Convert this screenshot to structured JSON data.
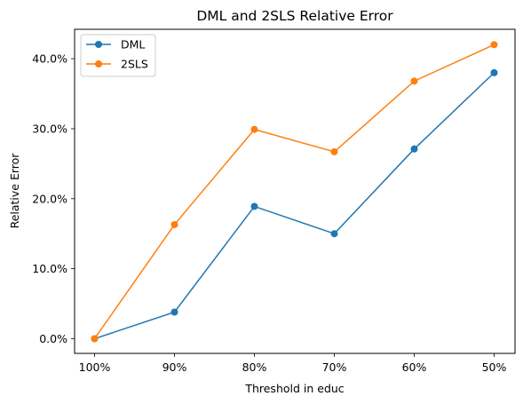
{
  "chart_data": {
    "type": "line",
    "title": "DML and 2SLS Relative Error",
    "xlabel": "Threshold in educ",
    "ylabel": "Relative Error",
    "categories": [
      "100%",
      "90%",
      "80%",
      "70%",
      "60%",
      "50%"
    ],
    "yticks": [
      0.0,
      0.1,
      0.2,
      0.3,
      0.4
    ],
    "ytick_labels": [
      "0.0%",
      "10.0%",
      "20.0%",
      "30.0%",
      "40.0%"
    ],
    "ylim": [
      -0.021,
      0.442
    ],
    "grid": false,
    "legend_position": "upper-left",
    "series": [
      {
        "name": "DML",
        "color": "#1f77b4",
        "marker": "circle",
        "values": [
          0.0,
          0.038,
          0.189,
          0.15,
          0.271,
          0.38
        ]
      },
      {
        "name": "2SLS",
        "color": "#ff7f0e",
        "marker": "circle",
        "values": [
          0.0,
          0.163,
          0.299,
          0.267,
          0.368,
          0.42
        ]
      }
    ]
  }
}
